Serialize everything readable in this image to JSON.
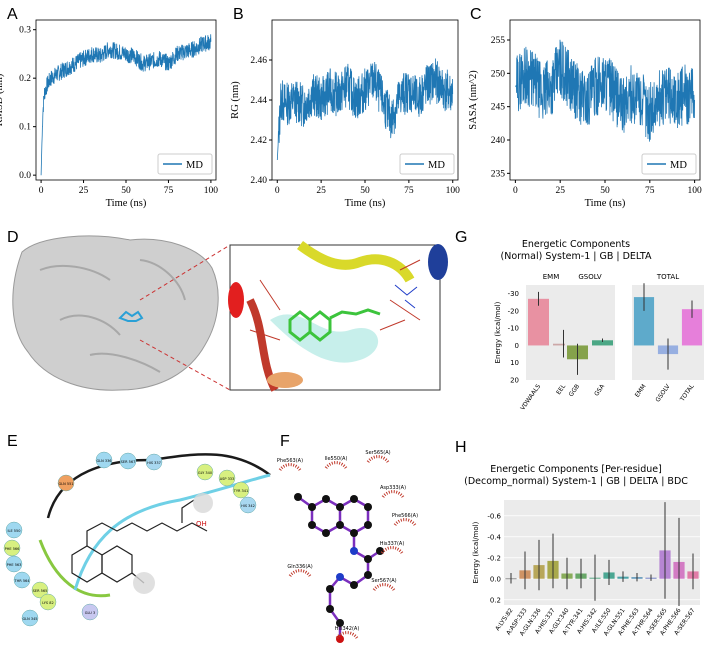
{
  "panel_letters": [
    "A",
    "B",
    "C",
    "D",
    "E",
    "F",
    "G",
    "H"
  ],
  "colors": {
    "md_line": "#1f77b4",
    "protein_surface": "#cfcfcf",
    "ligand_green": "#3cc43c",
    "helix_yellow": "#d9d92a",
    "helix_red": "#c0392b",
    "helix_blue": "#1f3f9a",
    "dashed_red": "#cc3333",
    "hbond_green": "#4caf50",
    "pocket_blue": "#6fd0e6",
    "atom_purple": "#7b2fbe",
    "atom_black": "#111111",
    "atom_blue": "#1e3cc8",
    "atom_red": "#cc1111",
    "contact_red": "#c0392b"
  },
  "chart_data": [
    {
      "id": "A",
      "type": "line",
      "title": "",
      "xlabel": "Time (ns)",
      "ylabel": "RMSD (nm)",
      "xlim": [
        -3,
        103
      ],
      "ylim": [
        -0.01,
        0.32
      ],
      "xticks": [
        0,
        25,
        50,
        75,
        100
      ],
      "yticks": [
        0.0,
        0.1,
        0.2,
        0.3
      ],
      "ytick_labels": [
        "0.0",
        "0.1",
        "0.2",
        "0.3"
      ],
      "legend": "MD",
      "legend_loc": "lower-right",
      "series": [
        {
          "name": "MD",
          "x": [
            0,
            1,
            2,
            4,
            6,
            10,
            15,
            20,
            25,
            30,
            35,
            40,
            45,
            50,
            55,
            60,
            65,
            70,
            75,
            80,
            85,
            90,
            95,
            100
          ],
          "y": [
            0.0,
            0.13,
            0.17,
            0.19,
            0.2,
            0.21,
            0.22,
            0.23,
            0.24,
            0.25,
            0.245,
            0.26,
            0.255,
            0.25,
            0.245,
            0.23,
            0.235,
            0.24,
            0.23,
            0.25,
            0.255,
            0.26,
            0.27,
            0.275
          ]
        }
      ]
    },
    {
      "id": "B",
      "type": "line",
      "title": "",
      "xlabel": "Time (ns)",
      "ylabel": "RG (nm)",
      "xlim": [
        -3,
        103
      ],
      "ylim": [
        2.4,
        2.48
      ],
      "xticks": [
        0,
        25,
        50,
        75,
        100
      ],
      "yticks": [
        2.4,
        2.42,
        2.44,
        2.46
      ],
      "ytick_labels": [
        "2.40",
        "2.42",
        "2.44",
        "2.46"
      ],
      "legend": "MD",
      "legend_loc": "lower-right",
      "series": [
        {
          "name": "MD",
          "x": [
            0,
            2,
            5,
            10,
            15,
            20,
            25,
            30,
            35,
            40,
            45,
            50,
            55,
            60,
            65,
            70,
            75,
            80,
            85,
            90,
            95,
            100
          ],
          "y": [
            2.41,
            2.44,
            2.438,
            2.44,
            2.437,
            2.443,
            2.44,
            2.445,
            2.442,
            2.448,
            2.44,
            2.445,
            2.45,
            2.44,
            2.43,
            2.442,
            2.445,
            2.44,
            2.447,
            2.45,
            2.445,
            2.443
          ]
        }
      ]
    },
    {
      "id": "C",
      "type": "line",
      "title": "",
      "xlabel": "Time (ns)",
      "ylabel": "SASA (nm^2)",
      "xlim": [
        -3,
        103
      ],
      "ylim": [
        234,
        258
      ],
      "xticks": [
        0,
        25,
        50,
        75,
        100
      ],
      "yticks": [
        235,
        240,
        245,
        250,
        255
      ],
      "ytick_labels": [
        "235",
        "240",
        "245",
        "250",
        "255"
      ],
      "legend": "MD",
      "legend_loc": "lower-right",
      "series": [
        {
          "name": "MD",
          "x": [
            0,
            5,
            10,
            15,
            20,
            25,
            30,
            35,
            40,
            45,
            50,
            55,
            60,
            65,
            70,
            75,
            80,
            85,
            90,
            95,
            100
          ],
          "y": [
            248,
            250,
            249,
            247,
            248,
            251,
            249,
            247,
            246,
            248,
            249,
            247,
            245,
            247,
            246,
            244,
            246,
            247,
            246,
            247,
            246
          ]
        }
      ]
    },
    {
      "id": "G",
      "type": "bar",
      "title": "Energetic Components",
      "subtitle": "(Normal) System-1 | GB | DELTA",
      "ylabel": "Energy (kcal/mol)",
      "ylim": [
        -35,
        20
      ],
      "yticks": [
        -30,
        -20,
        -10,
        0,
        10,
        20
      ],
      "ytick_labels": [
        "-30",
        "-20",
        "-10",
        "0",
        "10",
        "20"
      ],
      "axis_inverted": true,
      "facets": [
        {
          "name": "EMM",
          "categories": [
            "VDWAALS",
            "EEL"
          ],
          "values": [
            -27,
            -1
          ],
          "errors": [
            4,
            8
          ],
          "colors": [
            "#e8879a",
            "#c9a0a0"
          ]
        },
        {
          "name": "GSOLV",
          "categories": [
            "GGB",
            "GSA"
          ],
          "values": [
            8,
            -3
          ],
          "errors": [
            9,
            1
          ],
          "colors": [
            "#7a9a3a",
            "#3aa07a"
          ]
        },
        {
          "name": "TOTAL",
          "categories": [
            "EMM",
            "GSOLV",
            "TOTAL"
          ],
          "values": [
            -28,
            5,
            -21
          ],
          "errors": [
            8,
            9,
            5
          ],
          "colors": [
            "#4fa3c8",
            "#8ea8e0",
            "#e673d8"
          ]
        }
      ]
    },
    {
      "id": "H",
      "type": "bar",
      "title": "Energetic Components [Per-residue]",
      "subtitle": "(Decomp_normal) System-1 | GB | DELTA | BDC",
      "ylabel": "Energy (kcal/mol)",
      "ylim": [
        -0.75,
        0.25
      ],
      "yticks": [
        -0.6,
        -0.4,
        -0.2,
        0.0,
        0.2
      ],
      "ytick_labels": [
        "-0.6",
        "-0.4",
        "-0.2",
        "0.0",
        "0.2"
      ],
      "axis_inverted": true,
      "categories": [
        "A:LYS:82",
        "A:ASP:333",
        "A:GLN:336",
        "A:HIS:337",
        "A:GLY:340",
        "A:TYR:341",
        "A:HIS:342",
        "A:ILE:550",
        "A:GLN:551",
        "A:PHE:563",
        "A:THR:564",
        "A:SER:565",
        "A:PHE:566",
        "A:SER:567"
      ],
      "values": [
        -0.005,
        -0.08,
        -0.13,
        -0.17,
        -0.05,
        -0.05,
        -0.01,
        -0.06,
        -0.02,
        -0.015,
        -0.01,
        -0.27,
        -0.16,
        -0.07
      ],
      "errors": [
        0.05,
        0.18,
        0.24,
        0.26,
        0.15,
        0.14,
        0.22,
        0.12,
        0.05,
        0.04,
        0.03,
        0.46,
        0.42,
        0.17
      ],
      "colors": [
        "#8a8a8a",
        "#cc8a55",
        "#b2a04a",
        "#a2a23a",
        "#7ea64b",
        "#5aa05a",
        "#4aa07a",
        "#3aa08a",
        "#3a9aa0",
        "#4a8ab0",
        "#6a7ac0",
        "#b07ad0",
        "#d070c0",
        "#e070a0"
      ]
    }
  ],
  "panel_d": {
    "labels": []
  },
  "panel_e": {
    "residues": [
      "GLN 336",
      "SER 567",
      "HIS 337",
      "GLY 340",
      "ASP 333",
      "TYR 341",
      "HIS 342",
      "GLN 551",
      "ILE 550",
      "PHE 566",
      "PHE 563",
      "THR 564",
      "SER 565",
      "LYS 82",
      "GLN 345",
      "GLU 3"
    ],
    "atom_label": "OH"
  },
  "panel_f": {
    "residues": [
      "Phe563(A)",
      "Ile550(A)",
      "Ser565(A)",
      "Asp333(A)",
      "Phe566(A)",
      "His337(A)",
      "Gln336(A)",
      "Ser567(A)",
      "His342(A)"
    ]
  }
}
